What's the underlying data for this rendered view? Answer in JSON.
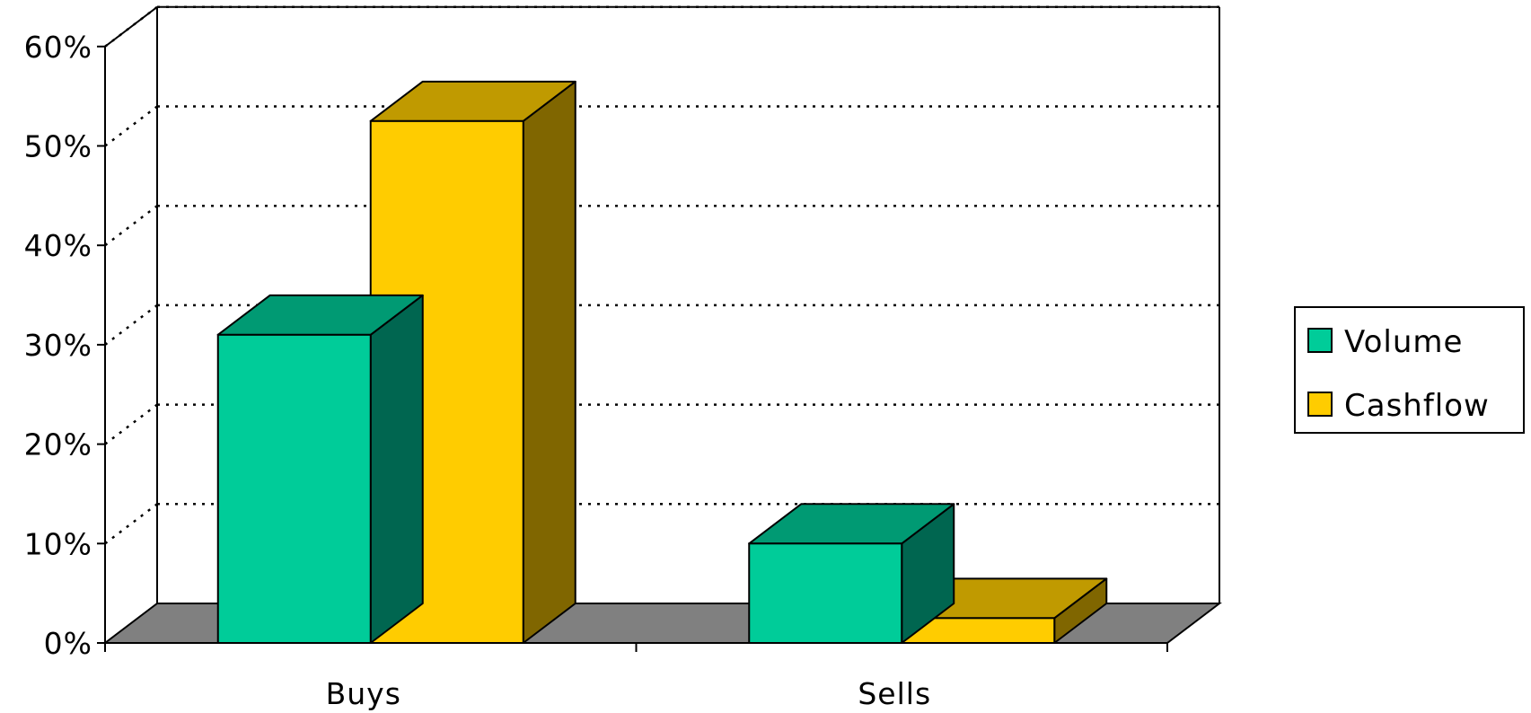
{
  "chart_data": {
    "type": "bar",
    "style": "3d-clustered-column",
    "categories": [
      "Buys",
      "Sells"
    ],
    "series": [
      {
        "name": "Volume",
        "values": [
          31,
          10
        ],
        "color": "#00CC99",
        "top_color": "#009A73",
        "side_color": "#006650"
      },
      {
        "name": "Cashflow",
        "values": [
          52.5,
          2.5
        ],
        "color": "#FFCC00",
        "top_color": "#C09A00",
        "side_color": "#806600"
      }
    ],
    "y_ticks": [
      "0%",
      "10%",
      "20%",
      "30%",
      "40%",
      "50%",
      "60%"
    ],
    "ylim": [
      0,
      60
    ],
    "grid": true,
    "legend_position": "right",
    "floor_color": "#808080"
  }
}
